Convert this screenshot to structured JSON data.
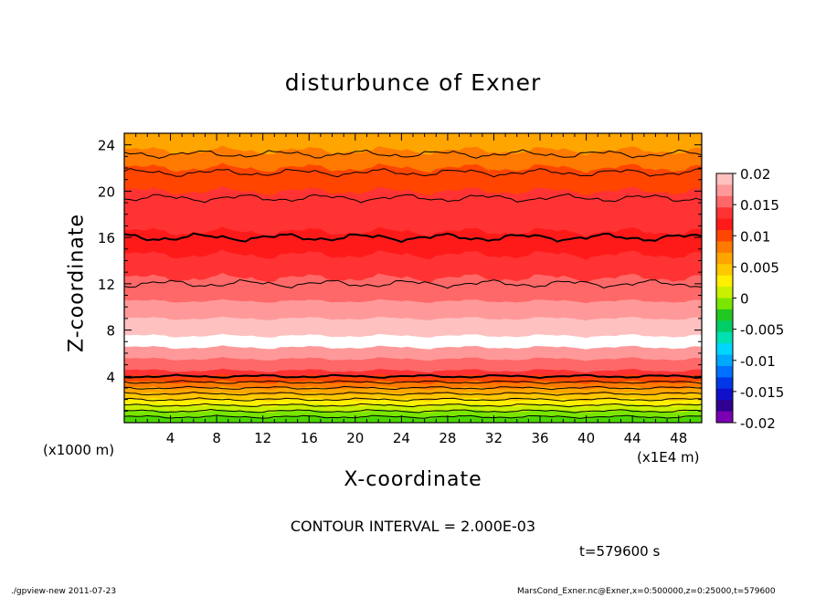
{
  "chart_data": {
    "type": "heatmap",
    "title": "disturbunce of Exner",
    "xlabel": "X-coordinate",
    "ylabel": "Z-coordinate",
    "x_unit_left": "(x1000 m)",
    "x_unit_right": "(x1E4 m)",
    "x_ticks": [
      "4",
      "8",
      "12",
      "16",
      "20",
      "24",
      "28",
      "32",
      "36",
      "40",
      "44",
      "48"
    ],
    "y_ticks": [
      "4",
      "8",
      "12",
      "16",
      "20",
      "24"
    ],
    "xlim": [
      0,
      50
    ],
    "ylim": [
      0,
      25
    ],
    "colorbar": {
      "labels": [
        "0.02",
        "0.015",
        "0.01",
        "0.005",
        "0",
        "-0.005",
        "-0.01",
        "-0.015",
        "-0.02"
      ],
      "range": [
        -0.02,
        0.02
      ],
      "colors_top_to_bottom": [
        "#ffc0c0",
        "#ff9999",
        "#ff6868",
        "#ff3333",
        "#ff1a1a",
        "#ff4500",
        "#ff7a00",
        "#ffa500",
        "#ffc800",
        "#ffef00",
        "#c8f000",
        "#7ae600",
        "#22c822",
        "#00cd66",
        "#00e0b0",
        "#00d6ff",
        "#00a8ff",
        "#0070ff",
        "#0038e8",
        "#1010c8",
        "#300090",
        "#7a00b4"
      ]
    },
    "vertical_profile": [
      {
        "z": 0.0,
        "value": 0.0001,
        "color": "#4cd600"
      },
      {
        "z": 0.5,
        "value": 0.0015,
        "color": "#7ae600"
      },
      {
        "z": 1.0,
        "value": 0.003,
        "color": "#c8f000"
      },
      {
        "z": 1.5,
        "value": 0.005,
        "color": "#ffef00"
      },
      {
        "z": 2.0,
        "value": 0.007,
        "color": "#ffc800"
      },
      {
        "z": 2.5,
        "value": 0.009,
        "color": "#ffa500"
      },
      {
        "z": 3.0,
        "value": 0.011,
        "color": "#ff7a00"
      },
      {
        "z": 3.5,
        "value": 0.013,
        "color": "#ff4500"
      },
      {
        "z": 4.0,
        "value": 0.015,
        "color": "#ff3333"
      },
      {
        "z": 5.0,
        "value": 0.017,
        "color": "#ff6868"
      },
      {
        "z": 6.0,
        "value": 0.019,
        "color": "#ff9999"
      },
      {
        "z": 7.0,
        "value": 0.021,
        "color": "#ffffff"
      },
      {
        "z": 8.5,
        "value": 0.019,
        "color": "#ffc0c0"
      },
      {
        "z": 10.0,
        "value": 0.018,
        "color": "#ff9999"
      },
      {
        "z": 12.0,
        "value": 0.017,
        "color": "#ff6868"
      },
      {
        "z": 14.0,
        "value": 0.016,
        "color": "#ff3333"
      },
      {
        "z": 16.0,
        "value": 0.015,
        "color": "#ff1a1a"
      },
      {
        "z": 19.5,
        "value": 0.014,
        "color": "#ff3333"
      },
      {
        "z": 21.5,
        "value": 0.012,
        "color": "#ff4500"
      },
      {
        "z": 23.0,
        "value": 0.011,
        "color": "#ff7a00"
      },
      {
        "z": 24.5,
        "value": 0.01,
        "color": "#ffa500"
      }
    ],
    "contour_levels_z": [
      23.2,
      21.6,
      19.4,
      16.0,
      12.0,
      4.0,
      3.5,
      3.0,
      2.5,
      2.0,
      1.5,
      1.0,
      0.5
    ]
  },
  "annotations": {
    "contour_interval": "CONTOUR INTERVAL = 2.000E-03",
    "time": "t=579600 s",
    "footer_left": "./gpview-new   2011-07-23",
    "footer_right": "MarsCond_Exner.nc@Exner,x=0:500000,z=0:25000,t=579600"
  }
}
